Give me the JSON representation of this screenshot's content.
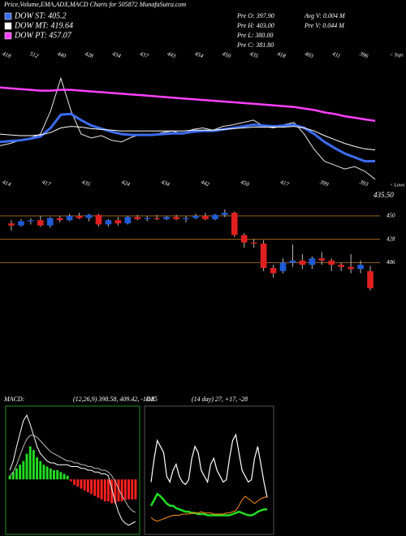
{
  "chart_data": [
    {
      "type": "line",
      "title": "Price,Volume,EMA,ADX,MACD Charts for 505872 MunafaSutra.com",
      "annotations": [
        "Pre O: 397.90",
        "Pre H: 403.00",
        "Pre L: 380.00",
        "Pre C: 381.80",
        "Avg V: 0.004 M",
        "Pre V: 0.044 M"
      ],
      "tops": [
        "418",
        "512",
        "440",
        "428",
        "434",
        "437",
        "443",
        "454",
        "450",
        "435",
        "418",
        "403",
        "411",
        "396"
      ],
      "tops_label": "< Tops",
      "lows": [
        "414",
        "417",
        "435",
        "424",
        "434",
        "442",
        "450",
        "417",
        "399",
        "393"
      ],
      "lows_label": "< Lows",
      "ylim": [
        370,
        550
      ],
      "series": [
        {
          "color": "#ffffff",
          "values": [
            425,
            428,
            432,
            435,
            440,
            470,
            512,
            470,
            440,
            435,
            438,
            432,
            430,
            436,
            440,
            438,
            442,
            444,
            440,
            446,
            448,
            445,
            450,
            452,
            455,
            458,
            450,
            448,
            452,
            455,
            440,
            420,
            405,
            400,
            395,
            398,
            392,
            381.8
          ]
        },
        {
          "name": "DOW ST: 405.2",
          "color": "#3c6cf0",
          "values": [
            430,
            431,
            432,
            434,
            437,
            448,
            465,
            466,
            458,
            451,
            447,
            443,
            440,
            439,
            439,
            439,
            440,
            441,
            441,
            443,
            444,
            444,
            446,
            448,
            450,
            452,
            451,
            450,
            451,
            452,
            448,
            440,
            430,
            422,
            415,
            410,
            405,
            405.2
          ]
        },
        {
          "name": "DOW MT: 419.64",
          "color": "#ffffff",
          "values": [
            440,
            439,
            438,
            438,
            439,
            442,
            448,
            450,
            449,
            447,
            446,
            445,
            444,
            444,
            444,
            444,
            444,
            444,
            444,
            445,
            445,
            445,
            446,
            447,
            448,
            449,
            449,
            449,
            449,
            450,
            448,
            444,
            438,
            433,
            428,
            424,
            421,
            419.64
          ]
        },
        {
          "name": "DOW PT: 457.07",
          "color": "#ff40ff",
          "values": [
            500,
            499,
            498,
            497,
            496,
            496,
            497,
            497,
            496,
            495,
            494,
            493,
            492,
            491,
            490,
            489,
            488,
            487,
            486,
            485,
            484,
            483,
            482,
            481,
            480,
            479,
            478,
            477,
            476,
            475,
            473,
            471,
            468,
            466,
            463,
            461,
            459,
            457.07
          ]
        }
      ]
    },
    {
      "type": "candlestick",
      "annotations": [
        "435.50"
      ],
      "up_color": "#1e5bd6",
      "down_color": "#e02020",
      "grid_color": "#a0641e",
      "ylim": [
        378,
        466
      ],
      "yticks": [
        450,
        428,
        406
      ],
      "open": [
        443,
        441,
        445,
        446,
        441,
        448,
        446,
        450,
        448,
        451,
        442,
        446,
        443,
        449,
        447,
        448,
        447,
        449,
        447,
        448,
        450,
        447,
        451,
        453,
        432,
        425,
        424,
        401,
        398,
        406,
        408,
        404,
        410,
        408,
        404,
        402,
        400,
        397.9
      ],
      "high": [
        446,
        447,
        448,
        450,
        449,
        450,
        452,
        453,
        452,
        452,
        447,
        449,
        450,
        451,
        450,
        451,
        450,
        451,
        450,
        452,
        453,
        452,
        456,
        454,
        434,
        428,
        427,
        404,
        410,
        423,
        414,
        412,
        416,
        410,
        406,
        414,
        408,
        403
      ],
      "low": [
        436,
        440,
        442,
        440,
        439,
        444,
        445,
        447,
        445,
        440,
        440,
        441,
        442,
        446,
        445,
        446,
        446,
        446,
        444,
        447,
        446,
        446,
        449,
        430,
        420,
        420,
        398,
        392,
        396,
        402,
        400,
        400,
        404,
        398,
        398,
        396,
        396,
        380
      ],
      "close": [
        441,
        445,
        446,
        441,
        448,
        446,
        450,
        448,
        451,
        442,
        446,
        443,
        449,
        447,
        448,
        447,
        449,
        447,
        448,
        450,
        447,
        451,
        453,
        432,
        425,
        424,
        401,
        396,
        406,
        408,
        404,
        410,
        408,
        404,
        402,
        400,
        404,
        381.8
      ]
    },
    {
      "type": "macd",
      "title": "MACD:",
      "subtitle": "(12,26,9) 398.58, 409.42, -10.85",
      "ylim": [
        -30,
        40
      ],
      "up_color": "#22dd22",
      "down_color": "#ff2020",
      "border_color": "#1f8f1f",
      "histogram": [
        2,
        4,
        6,
        8,
        10,
        14,
        18,
        16,
        12,
        10,
        8,
        7,
        6,
        5,
        5,
        4,
        3,
        2,
        -1,
        -3,
        -4,
        -5,
        -6,
        -7,
        -8,
        -9,
        -10,
        -11,
        -12,
        -12,
        -13,
        -13,
        -12,
        -12,
        -11,
        -11,
        -11,
        -10.85
      ],
      "series": [
        {
          "color": "#ffffff",
          "values": [
            5,
            10,
            18,
            25,
            32,
            35,
            30,
            24,
            18,
            14,
            12,
            10,
            9,
            9,
            8,
            8,
            8,
            8,
            7,
            7,
            7,
            6,
            6,
            5,
            5,
            4,
            4,
            3,
            3,
            2,
            -5,
            -12,
            -18,
            -22,
            -24,
            -25,
            -24,
            -23
          ]
        },
        {
          "color": "#bbbbbb",
          "values": [
            2,
            4,
            8,
            13,
            18,
            22,
            24,
            24,
            23,
            21,
            19,
            17,
            15,
            14,
            13,
            12,
            11,
            10,
            10,
            9,
            9,
            8,
            8,
            7,
            7,
            6,
            6,
            5,
            5,
            4,
            2,
            -1,
            -5,
            -9,
            -12,
            -15,
            -17,
            -18
          ]
        }
      ]
    },
    {
      "type": "adx",
      "title": "DX",
      "subtitle": "(14 day) 27, +17, -28",
      "ylim": [
        0,
        100
      ],
      "border_color": "#555555",
      "series": [
        {
          "color": "#ffffff",
          "values": [
            40,
            60,
            75,
            70,
            65,
            45,
            40,
            50,
            55,
            45,
            40,
            38,
            42,
            60,
            70,
            65,
            50,
            45,
            40,
            55,
            60,
            50,
            45,
            40,
            42,
            60,
            75,
            80,
            65,
            50,
            45,
            40,
            42,
            60,
            70,
            55,
            40,
            27
          ]
        },
        {
          "color": "#22dd22",
          "values": [
            20,
            25,
            30,
            28,
            25,
            22,
            20,
            20,
            18,
            17,
            16,
            15,
            15,
            14,
            14,
            13,
            13,
            13,
            12,
            12,
            12,
            12,
            12,
            12,
            12,
            12,
            13,
            14,
            15,
            14,
            13,
            12,
            12,
            13,
            15,
            16,
            17,
            17
          ]
        },
        {
          "color": "#ff8c1a",
          "values": [
            10,
            8,
            7,
            8,
            9,
            10,
            11,
            12,
            12,
            12,
            13,
            13,
            13,
            14,
            14,
            14,
            15,
            14,
            14,
            14,
            13,
            13,
            13,
            13,
            14,
            14,
            15,
            16,
            20,
            25,
            28,
            26,
            24,
            22,
            24,
            26,
            27,
            28
          ]
        }
      ]
    }
  ]
}
